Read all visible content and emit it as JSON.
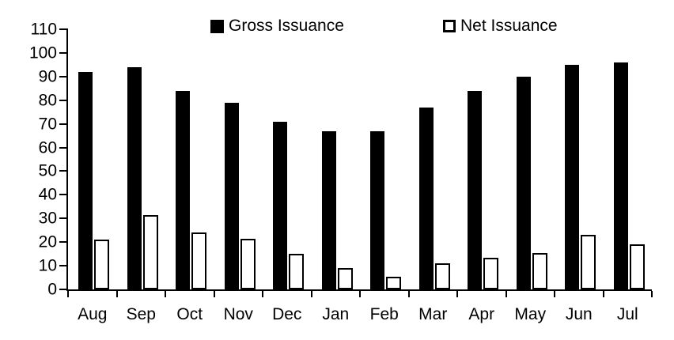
{
  "chart_data": {
    "type": "bar",
    "categories": [
      "Aug",
      "Sep",
      "Oct",
      "Nov",
      "Dec",
      "Jan",
      "Feb",
      "Mar",
      "Apr",
      "May",
      "Jun",
      "Jul"
    ],
    "series": [
      {
        "name": "Gross Issuance",
        "values": [
          92,
          94,
          84,
          79,
          71,
          67,
          67,
          77,
          84,
          90,
          95,
          96
        ],
        "fill": "#000000"
      },
      {
        "name": "Net Issuance",
        "values": [
          21,
          31.5,
          24,
          21.5,
          15,
          9,
          5.5,
          11,
          13.5,
          15.5,
          23,
          19
        ],
        "fill": "#ffffff",
        "stroke": "#000000"
      }
    ],
    "title": "",
    "xlabel": "",
    "ylabel": "",
    "ylim": [
      0,
      110
    ],
    "ytick_step": 10,
    "grid": false,
    "legend_position": "top",
    "axis_color": "#000000",
    "background_color": "#ffffff"
  }
}
